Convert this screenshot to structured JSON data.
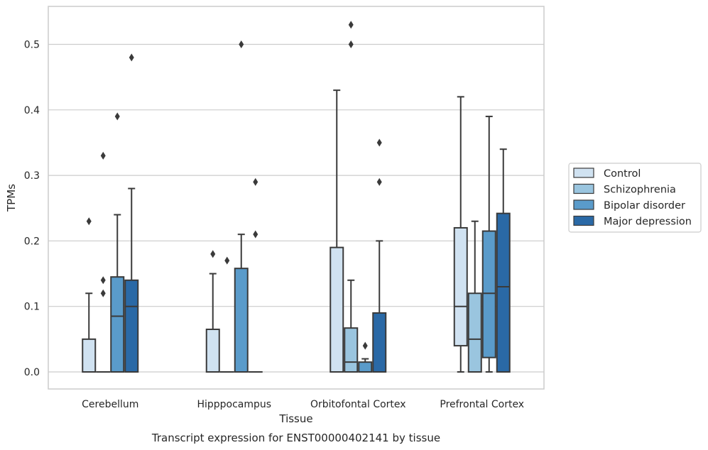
{
  "chart_data": {
    "type": "boxplot",
    "title": "Transcript expression for ENST00000402141 by tissue",
    "xlabel": "Tissue",
    "ylabel": "TPMs",
    "ylim": [
      -0.026,
      0.558
    ],
    "yticks": [
      0.0,
      0.1,
      0.2,
      0.3,
      0.4,
      0.5
    ],
    "ytick_labels": [
      "0.0",
      "0.1",
      "0.2",
      "0.3",
      "0.4",
      "0.5"
    ],
    "grid": "horizontal",
    "legend_position": "right",
    "categories": [
      "Cerebellum",
      "Hipppocampus",
      "Orbitofontal Cortex",
      "Prefrontal Cortex"
    ],
    "series": [
      {
        "name": "Control",
        "color": "#d0e2f1",
        "boxes": [
          {
            "q1": 0.0,
            "median": 0.0,
            "q3": 0.05,
            "whisker_low": 0.0,
            "whisker_high": 0.12,
            "outliers": [
              0.23
            ]
          },
          {
            "q1": 0.0,
            "median": 0.0,
            "q3": 0.065,
            "whisker_low": 0.0,
            "whisker_high": 0.15,
            "outliers": [
              0.18
            ]
          },
          {
            "q1": 0.0,
            "median": 0.0,
            "q3": 0.19,
            "whisker_low": 0.0,
            "whisker_high": 0.43,
            "outliers": []
          },
          {
            "q1": 0.04,
            "median": 0.1,
            "q3": 0.22,
            "whisker_low": 0.0,
            "whisker_high": 0.42,
            "outliers": []
          }
        ]
      },
      {
        "name": "Schizophrenia",
        "color": "#9ac5df",
        "boxes": [
          {
            "q1": 0.0,
            "median": 0.0,
            "q3": 0.0,
            "whisker_low": 0.0,
            "whisker_high": 0.0,
            "outliers": [
              0.12,
              0.14,
              0.33
            ]
          },
          {
            "q1": 0.0,
            "median": 0.0,
            "q3": 0.0,
            "whisker_low": 0.0,
            "whisker_high": 0.0,
            "outliers": [
              0.17
            ]
          },
          {
            "q1": 0.0,
            "median": 0.015,
            "q3": 0.067,
            "whisker_low": 0.0,
            "whisker_high": 0.14,
            "outliers": [
              0.5,
              0.53
            ]
          },
          {
            "q1": 0.0,
            "median": 0.05,
            "q3": 0.12,
            "whisker_low": 0.0,
            "whisker_high": 0.23,
            "outliers": []
          }
        ]
      },
      {
        "name": "Bipolar disorder",
        "color": "#5a9bca",
        "boxes": [
          {
            "q1": 0.0,
            "median": 0.085,
            "q3": 0.145,
            "whisker_low": 0.0,
            "whisker_high": 0.24,
            "outliers": [
              0.39
            ]
          },
          {
            "q1": 0.0,
            "median": 0.0,
            "q3": 0.158,
            "whisker_low": 0.0,
            "whisker_high": 0.21,
            "outliers": [
              0.5
            ]
          },
          {
            "q1": 0.0,
            "median": 0.0,
            "q3": 0.015,
            "whisker_low": 0.0,
            "whisker_high": 0.02,
            "outliers": [
              0.04
            ]
          },
          {
            "q1": 0.022,
            "median": 0.12,
            "q3": 0.215,
            "whisker_low": 0.0,
            "whisker_high": 0.39,
            "outliers": []
          }
        ]
      },
      {
        "name": "Major depression",
        "color": "#2a69a6",
        "boxes": [
          {
            "q1": 0.0,
            "median": 0.1,
            "q3": 0.14,
            "whisker_low": 0.0,
            "whisker_high": 0.28,
            "outliers": [
              0.48
            ]
          },
          {
            "q1": 0.0,
            "median": 0.0,
            "q3": 0.0,
            "whisker_low": 0.0,
            "whisker_high": 0.0,
            "outliers": [
              0.21,
              0.29
            ]
          },
          {
            "q1": 0.0,
            "median": 0.0,
            "q3": 0.09,
            "whisker_low": 0.0,
            "whisker_high": 0.2,
            "outliers": [
              0.29,
              0.35
            ]
          },
          {
            "q1": 0.0,
            "median": 0.13,
            "q3": 0.242,
            "whisker_low": 0.0,
            "whisker_high": 0.34,
            "outliers": []
          }
        ]
      }
    ]
  }
}
